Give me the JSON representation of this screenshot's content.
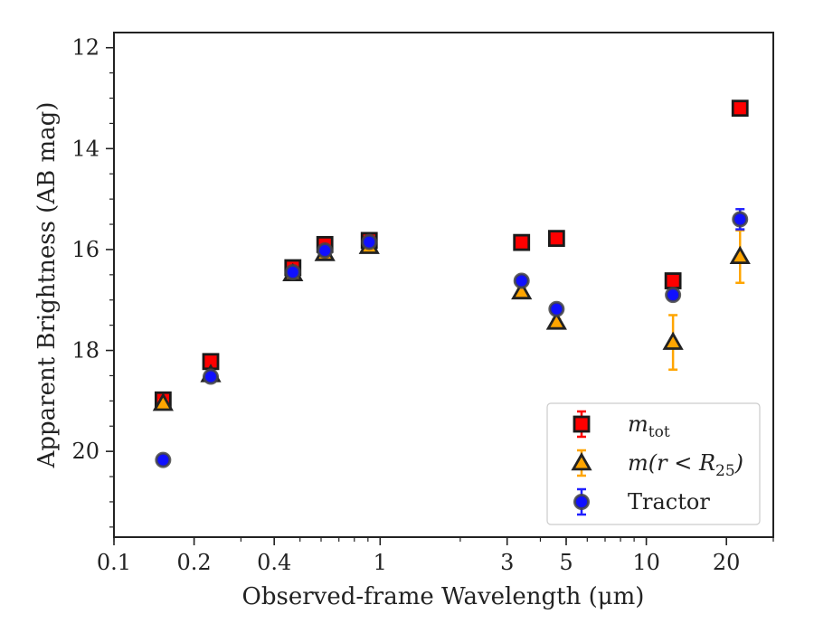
{
  "chart_data": {
    "type": "scatter",
    "title": "",
    "xlabel": "Observed-frame Wavelength (μm)",
    "ylabel": "Apparent Brightness (AB mag)",
    "xscale": "log",
    "xlim": [
      0.1,
      30
    ],
    "ylim": [
      21.7,
      11.7
    ],
    "y_inverted": true,
    "x_ticks": [
      0.1,
      0.2,
      0.4,
      1,
      3,
      5,
      10,
      20
    ],
    "x_tick_labels": [
      "0.1",
      "0.2",
      "0.4",
      "1",
      "3",
      "5",
      "10",
      "20"
    ],
    "y_ticks": [
      12,
      14,
      16,
      18,
      20
    ],
    "y_tick_labels": [
      "12",
      "14",
      "16",
      "18",
      "20"
    ],
    "grid": false,
    "legend_position": "bottom-right",
    "series": [
      {
        "name": "m_tot",
        "legend_main": "m",
        "legend_sub": "tot",
        "marker": "square",
        "fill": "#ff0000",
        "edge": "#1a1a1a",
        "errcolor": "#ff0000",
        "points": [
          {
            "x": 0.153,
            "y": 18.98,
            "err": 0.08
          },
          {
            "x": 0.231,
            "y": 18.22,
            "err": 0.07
          },
          {
            "x": 0.47,
            "y": 16.36,
            "err": 0.05
          },
          {
            "x": 0.62,
            "y": 15.9,
            "err": 0.05
          },
          {
            "x": 0.91,
            "y": 15.82,
            "err": 0.05
          },
          {
            "x": 3.4,
            "y": 15.86,
            "err": 0.05
          },
          {
            "x": 4.6,
            "y": 15.78,
            "err": 0.05
          },
          {
            "x": 12.6,
            "y": 16.62,
            "err": 0.05
          },
          {
            "x": 22.5,
            "y": 13.2,
            "err": 0.05
          }
        ]
      },
      {
        "name": "m(r<R_25)",
        "legend_main": "m(r < R",
        "legend_sub": "25",
        "legend_tail": ")",
        "marker": "triangle",
        "fill": "#ffa500",
        "edge": "#222222",
        "errcolor": "#ffa500",
        "points": [
          {
            "x": 0.153,
            "y": 19.05,
            "err": 0.06
          },
          {
            "x": 0.231,
            "y": 18.48,
            "err": 0.06
          },
          {
            "x": 0.47,
            "y": 16.48,
            "err": 0.05
          },
          {
            "x": 0.62,
            "y": 16.08,
            "err": 0.05
          },
          {
            "x": 0.91,
            "y": 15.94,
            "err": 0.05
          },
          {
            "x": 3.4,
            "y": 16.84,
            "err": 0.06
          },
          {
            "x": 4.6,
            "y": 17.44,
            "err": 0.06
          },
          {
            "x": 12.6,
            "y": 17.84,
            "err": 0.54
          },
          {
            "x": 22.5,
            "y": 16.14,
            "err": 0.52
          }
        ]
      },
      {
        "name": "Tractor",
        "legend_main": "Tractor",
        "marker": "circle",
        "fill": "#1010ff",
        "edge": "#444444",
        "errcolor": "#2020ff",
        "points": [
          {
            "x": 0.153,
            "y": 20.17,
            "err": 0.06
          },
          {
            "x": 0.231,
            "y": 18.52,
            "err": 0.05
          },
          {
            "x": 0.47,
            "y": 16.45,
            "err": 0.05
          },
          {
            "x": 0.62,
            "y": 16.02,
            "err": 0.05
          },
          {
            "x": 0.91,
            "y": 15.85,
            "err": 0.05
          },
          {
            "x": 3.4,
            "y": 16.62,
            "err": 0.05
          },
          {
            "x": 4.6,
            "y": 17.18,
            "err": 0.05
          },
          {
            "x": 12.6,
            "y": 16.9,
            "err": 0.05
          },
          {
            "x": 22.5,
            "y": 15.4,
            "err": 0.2
          }
        ]
      }
    ]
  }
}
